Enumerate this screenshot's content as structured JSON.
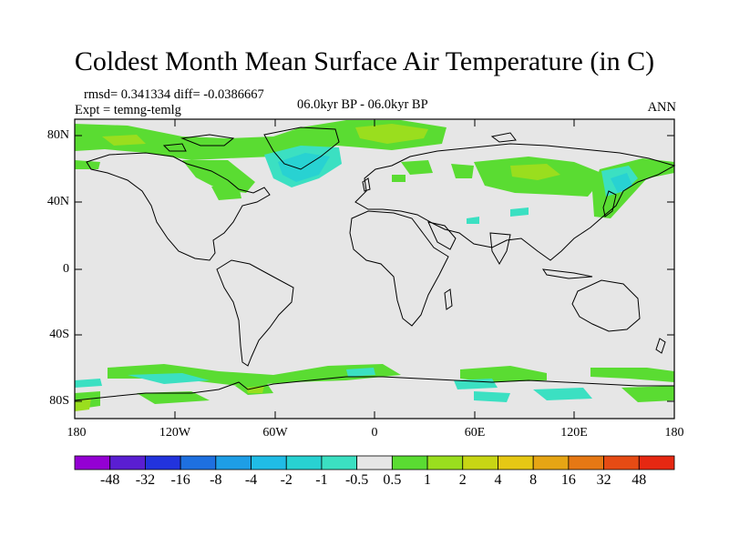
{
  "title": "Coldest Month Mean Surface Air Temperature (in C)",
  "stats_line": "rmsd= 0.341334  diff= -0.0386667",
  "experiment_line": "Expt = temng-temlg",
  "period_line": "06.0kyr BP - 06.0kyr BP",
  "season_label": "ANN",
  "lat_labels": [
    "80N",
    "40N",
    "0",
    "40S",
    "80S"
  ],
  "lon_labels": [
    "180",
    "120W",
    "60W",
    "0",
    "60E",
    "120E",
    "180"
  ],
  "colorbar": {
    "labels": [
      "-48",
      "-32",
      "-16",
      "-8",
      "-4",
      "-2",
      "-1",
      "-0.5",
      "0.5",
      "1",
      "2",
      "4",
      "8",
      "16",
      "32",
      "48"
    ],
    "colors": [
      "#9400d3",
      "#5a1ed2",
      "#2233dd",
      "#1e70e0",
      "#1e9ee6",
      "#20bce6",
      "#28d2d2",
      "#3be0c2",
      "#e6e6e6",
      "#5adc32",
      "#9ade1e",
      "#c8d614",
      "#e6c814",
      "#e6a514",
      "#e67814",
      "#e64b14",
      "#e62812"
    ]
  },
  "map_colors": {
    "neutral": "#e6e6e6",
    "frame": "#000000",
    "coast": "#000000"
  }
}
